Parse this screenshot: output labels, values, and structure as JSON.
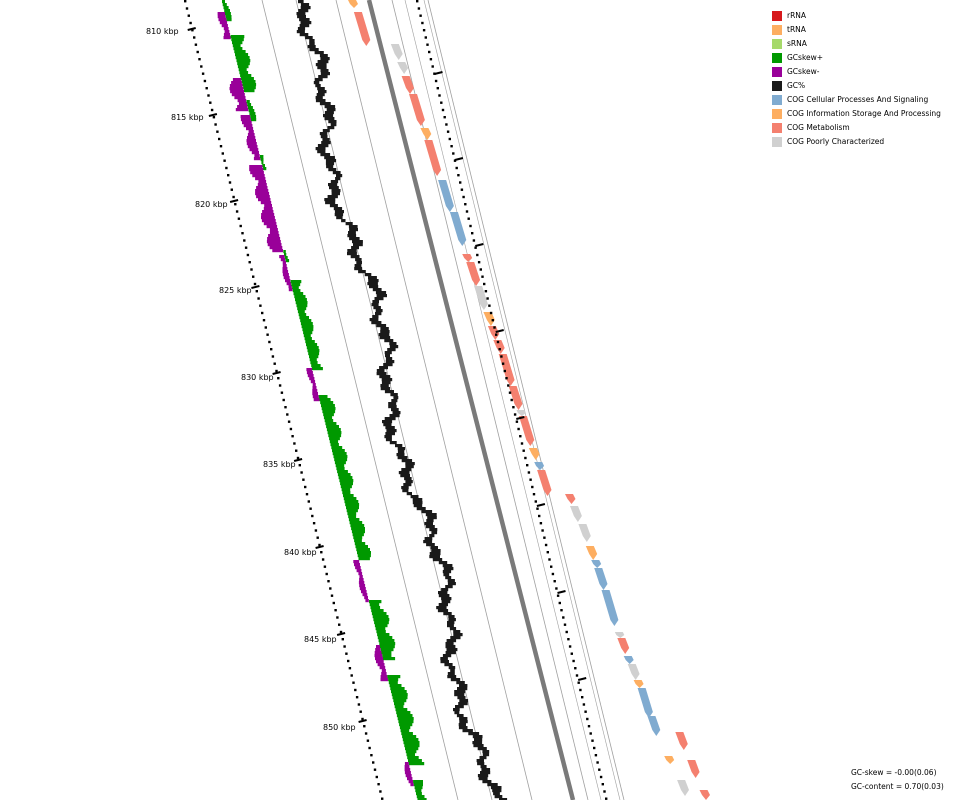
{
  "axis": {
    "unit": "kbp",
    "ticks": [
      {
        "label": "810 kbp"
      },
      {
        "label": "815 kbp"
      },
      {
        "label": "820 kbp"
      },
      {
        "label": "825 kbp"
      },
      {
        "label": "830 kbp"
      },
      {
        "label": "835 kbp"
      },
      {
        "label": "840 kbp"
      },
      {
        "label": "845 kbp"
      },
      {
        "label": "850 kbp"
      }
    ]
  },
  "legend": {
    "items": [
      {
        "label": "rRNA",
        "color": "#d7191c"
      },
      {
        "label": "tRNA",
        "color": "#fdae61"
      },
      {
        "label": "sRNA",
        "color": "#a6d96a"
      },
      {
        "label": "GCskew+",
        "color": "#009900"
      },
      {
        "label": "GCskew-",
        "color": "#990099"
      },
      {
        "label": "GC%",
        "color": "#1a1a1a"
      },
      {
        "label": "COG Cellular Processes And Signaling",
        "color": "#80abd0"
      },
      {
        "label": "COG Information Storage And Processing",
        "color": "#fdae61"
      },
      {
        "label": "COG Metabolism",
        "color": "#f4806f"
      },
      {
        "label": "COG Poorly Characterized",
        "color": "#d0d0d0"
      }
    ]
  },
  "colors": {
    "backbone": "#7a7a7a",
    "ring_line": "#a0a0a0",
    "tick": "#000000"
  },
  "stats": {
    "gc_skew": "GC-skew = -0.00(0.06)",
    "gc_content": "GC-content = 0.70(0.03)"
  }
}
